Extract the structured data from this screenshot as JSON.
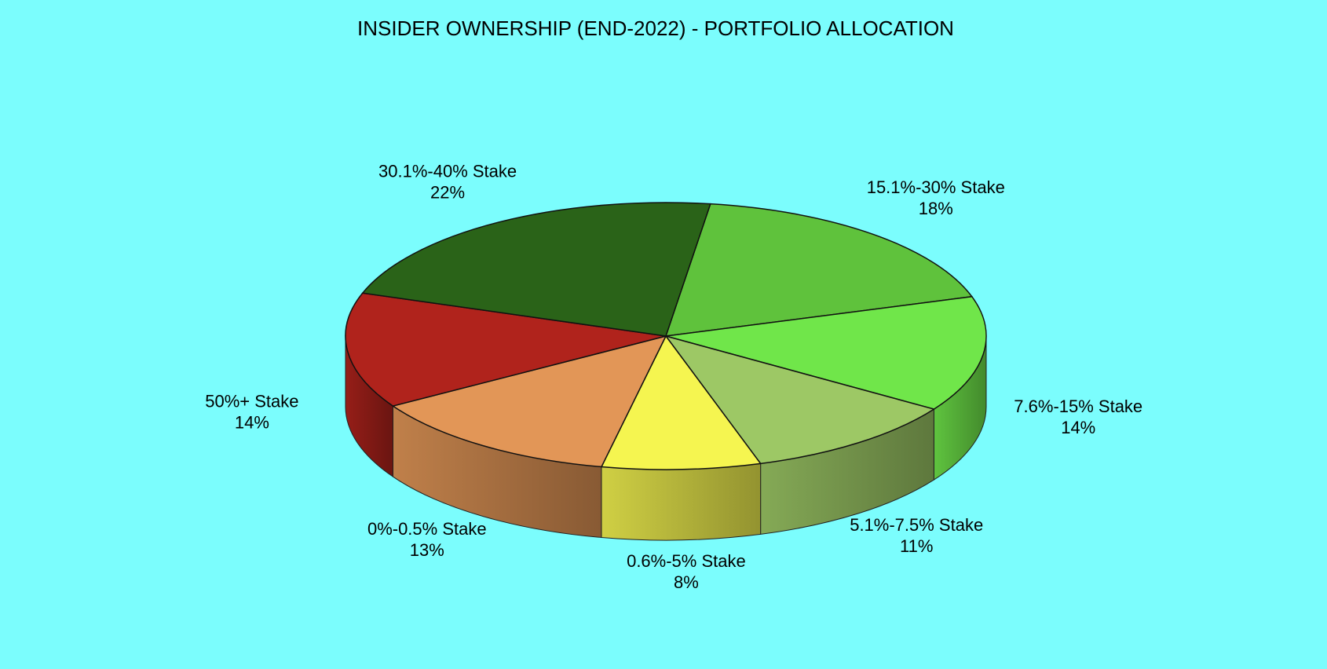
{
  "chart_data": {
    "type": "pie3d",
    "title": "INSIDER OWNERSHIP (END-2022) - PORTFOLIO ALLOCATION",
    "categories": [
      "15.1%-30% Stake",
      "7.6%-15% Stake",
      "5.1%-7.5% Stake",
      "0.6%-5% Stake",
      "0%-0.5% Stake",
      "50%+ Stake",
      "30.1%-40% Stake"
    ],
    "values": [
      18,
      14,
      11,
      8,
      13,
      14,
      22
    ],
    "value_labels": [
      "18%",
      "14%",
      "11%",
      "8%",
      "13%",
      "14%",
      "22%"
    ],
    "colors": [
      "#5fc23c",
      "#70e64a",
      "#9dc865",
      "#f5f550",
      "#e29657",
      "#b0231c",
      "#2a6318"
    ]
  }
}
